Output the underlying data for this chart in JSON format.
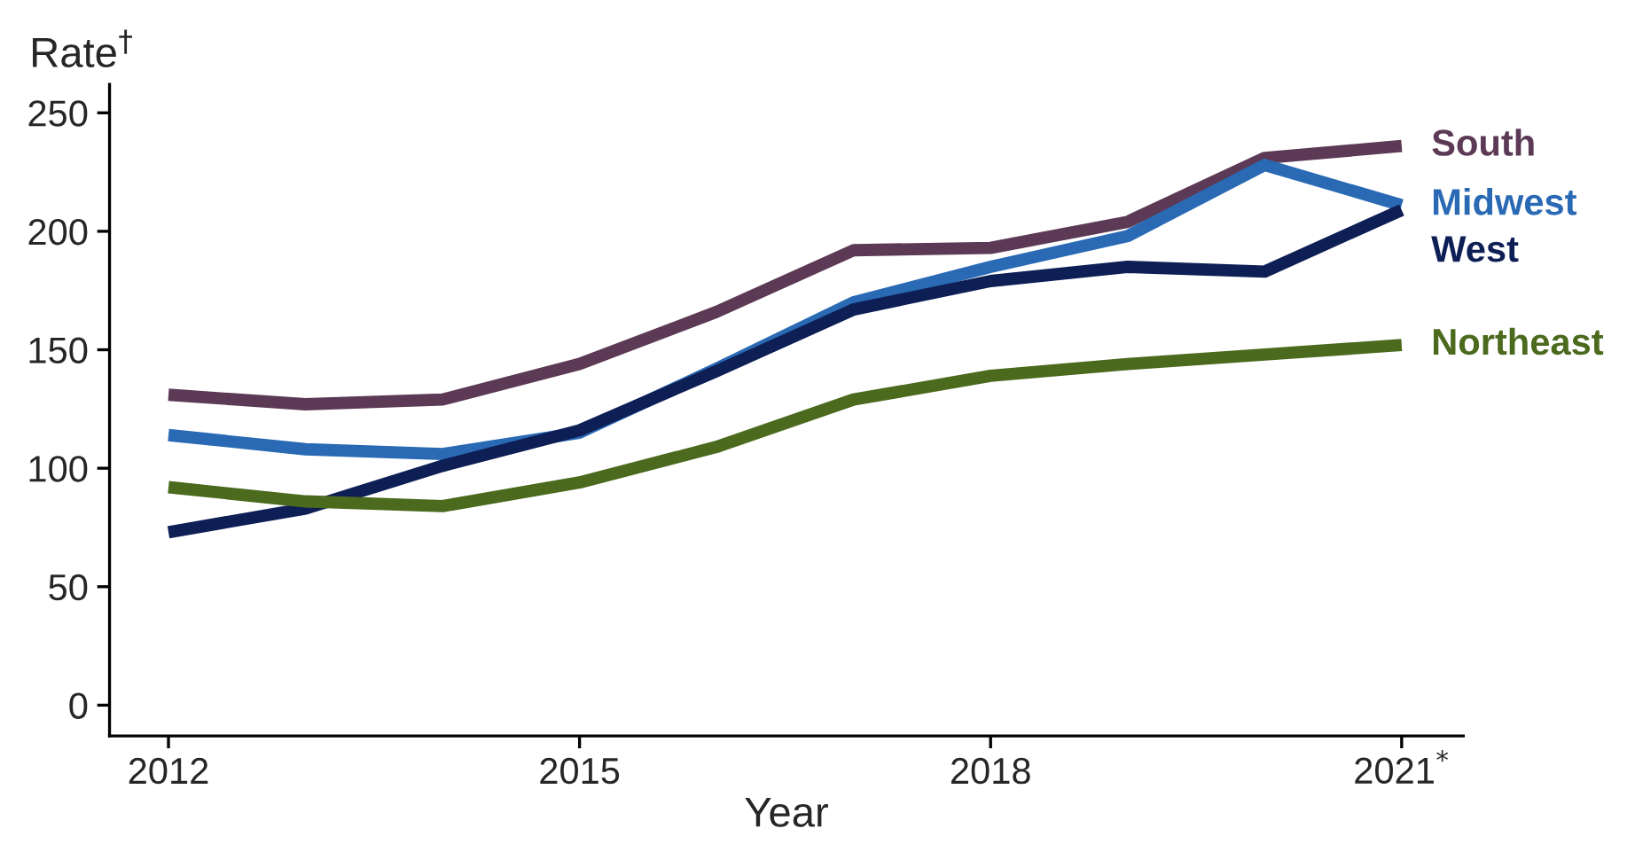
{
  "chart_data": {
    "type": "line",
    "xlabel": "Year",
    "ylabel": "Rate$^{†}$",
    "x": [
      2012,
      2013,
      2014,
      2015,
      2016,
      2017,
      2018,
      2019,
      2020,
      2021
    ],
    "series": [
      {
        "name": "South",
        "color": "#5c3a55",
        "values": [
          131,
          127,
          129,
          144,
          166,
          192,
          193,
          204,
          231,
          236
        ]
      },
      {
        "name": "Midwest",
        "color": "#2a6ab5",
        "values": [
          114,
          108,
          106,
          115,
          142,
          170,
          185,
          198,
          228,
          211
        ]
      },
      {
        "name": "West",
        "color": "#0e1f56",
        "values": [
          73,
          83,
          101,
          116,
          141,
          167,
          179,
          185,
          183,
          209
        ]
      },
      {
        "name": "Northeast",
        "color": "#4b6a1e",
        "values": [
          92,
          86,
          84,
          94,
          109,
          129,
          139,
          144,
          148,
          152
        ]
      }
    ],
    "xlim": [
      2011.57,
      2021.45
    ],
    "xticks": [
      2012,
      2015,
      2018,
      {
        "value": 2021,
        "label": "2021$^{*}$"
      }
    ],
    "ylim": [
      -13,
      262
    ],
    "yticks": [
      0,
      50,
      100,
      150,
      200,
      250
    ],
    "grid": false,
    "legend": false,
    "marker": "none",
    "line_style": "solid"
  }
}
